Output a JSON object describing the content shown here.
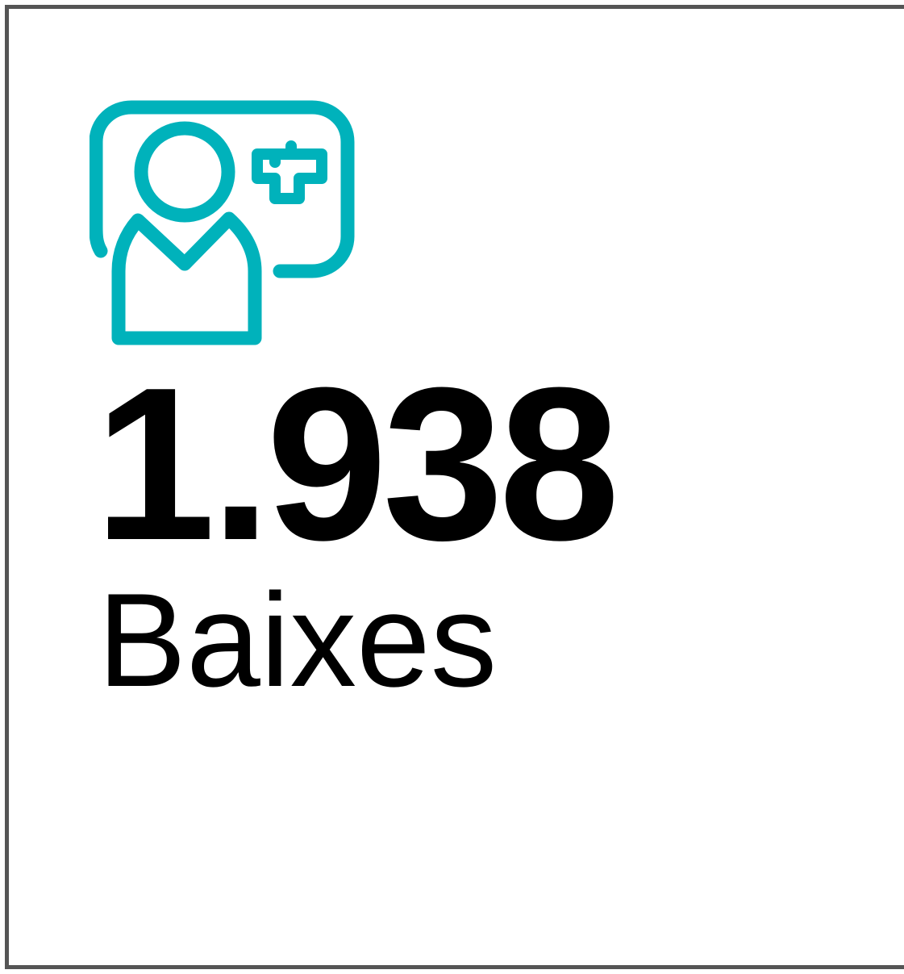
{
  "stat": {
    "value": "1.938",
    "label": "Baixes"
  }
}
